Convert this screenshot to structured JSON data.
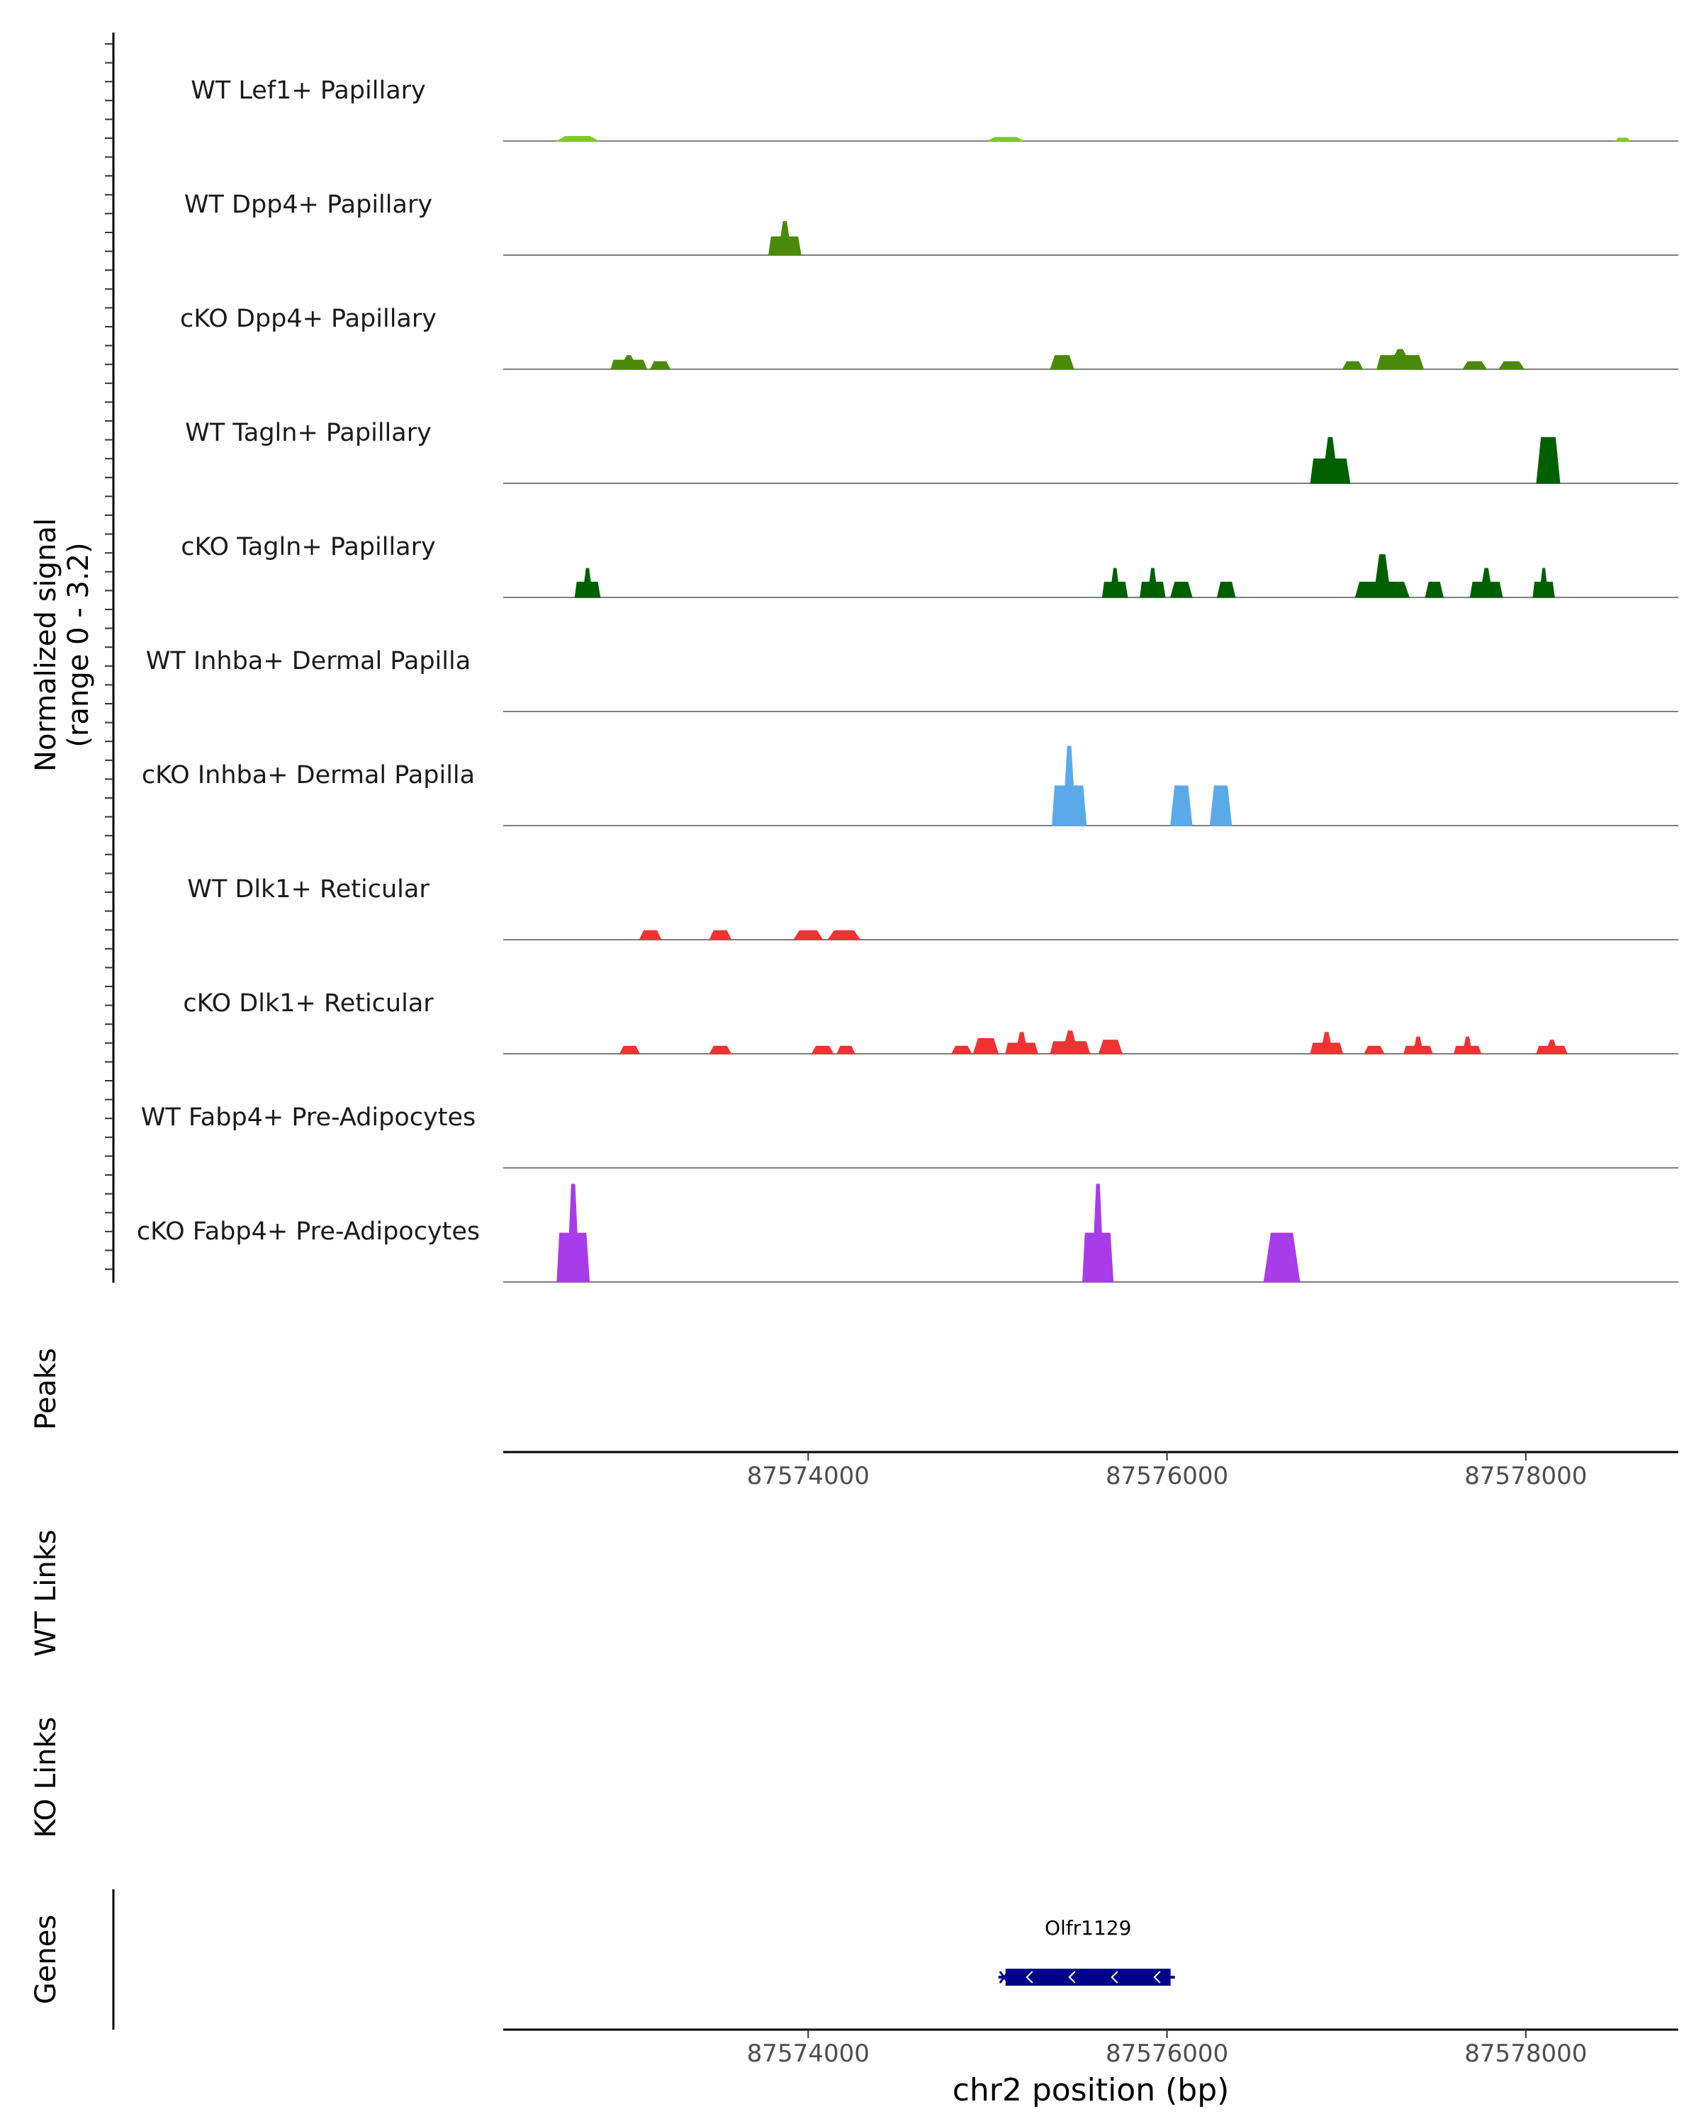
{
  "chart_data": {
    "type": "area",
    "title": "",
    "chromosome": "chr2",
    "xlim": [
      87572300,
      87578850
    ],
    "xlabel": "chr2 position (bp)",
    "x_ticks": [
      87574000,
      87576000,
      87578000
    ],
    "x_tick_labels": [
      "87574000",
      "87576000",
      "87578000"
    ],
    "ylabel": "Normalized signal",
    "ylabel_range": "(range 0 - 3.2)",
    "ylim": [
      0,
      3.2
    ],
    "series": [
      {
        "name": "WT Lef1+ Papillary",
        "color": "#7ccd1f",
        "peaks": [
          [
            87572600,
            87572830,
            0.15,
            0.0
          ],
          [
            87575000,
            87575200,
            0.12,
            0.0
          ],
          [
            87578500,
            87578580,
            0.1,
            0.0
          ]
        ]
      },
      {
        "name": "WT Dpp4+ Papillary",
        "color": "#4a8a08",
        "peaks": [
          [
            87573780,
            87573960,
            1.1,
            0.6
          ]
        ]
      },
      {
        "name": "cKO Dpp4+ Papillary",
        "color": "#4a8a08",
        "peaks": [
          [
            87572900,
            87573100,
            0.45,
            0.3
          ],
          [
            87573120,
            87573230,
            0.25,
            0.0
          ],
          [
            87575350,
            87575480,
            0.45,
            0.0
          ],
          [
            87576980,
            87577090,
            0.25,
            0.0
          ],
          [
            87577170,
            87577430,
            0.65,
            0.45
          ],
          [
            87577650,
            87577780,
            0.25,
            0.0
          ],
          [
            87577850,
            87577990,
            0.25,
            0.0
          ]
        ]
      },
      {
        "name": "WT Tagln+ Papillary",
        "color": "#006000",
        "peaks": [
          [
            87576800,
            87577020,
            1.5,
            0.8
          ],
          [
            87578060,
            87578190,
            1.5,
            0.0
          ]
        ]
      },
      {
        "name": "cKO Tagln+ Papillary",
        "color": "#006000",
        "peaks": [
          [
            87572700,
            87572840,
            0.95,
            0.5
          ],
          [
            87575640,
            87575780,
            0.95,
            0.5
          ],
          [
            87575850,
            87575990,
            0.95,
            0.5
          ],
          [
            87576020,
            87576140,
            0.5,
            0.0
          ],
          [
            87576280,
            87576380,
            0.5,
            0.0
          ],
          [
            87577050,
            87577350,
            1.4,
            0.5
          ],
          [
            87577440,
            87577540,
            0.5,
            0.0
          ],
          [
            87577690,
            87577870,
            0.95,
            0.5
          ],
          [
            87578040,
            87578160,
            0.95,
            0.5
          ]
        ]
      },
      {
        "name": "WT Inhba+ Dermal Papilla",
        "color": "#5aaaea",
        "peaks": []
      },
      {
        "name": "cKO Inhba+ Dermal Papilla",
        "color": "#5aaaea",
        "peaks": [
          [
            87575360,
            87575550,
            2.6,
            1.3
          ],
          [
            87576020,
            87576140,
            1.3,
            0.0
          ],
          [
            87576240,
            87576360,
            1.3,
            0.0
          ]
        ]
      },
      {
        "name": "WT Dlk1+ Reticular",
        "color": "#ee3333",
        "peaks": [
          [
            87573060,
            87573180,
            0.3,
            0.0
          ],
          [
            87573450,
            87573570,
            0.3,
            0.0
          ],
          [
            87573920,
            87574080,
            0.3,
            0.0
          ],
          [
            87574110,
            87574290,
            0.3,
            0.0
          ]
        ]
      },
      {
        "name": "cKO Dlk1+ Reticular",
        "color": "#ee3333",
        "peaks": [
          [
            87572950,
            87573060,
            0.25,
            0.0
          ],
          [
            87573450,
            87573570,
            0.25,
            0.0
          ],
          [
            87574020,
            87574140,
            0.25,
            0.0
          ],
          [
            87574160,
            87574260,
            0.25,
            0.0
          ],
          [
            87574800,
            87574910,
            0.25,
            0.0
          ],
          [
            87574920,
            87575060,
            0.5,
            0.0
          ],
          [
            87575100,
            87575280,
            0.7,
            0.35
          ],
          [
            87575350,
            87575570,
            0.75,
            0.4
          ],
          [
            87575620,
            87575750,
            0.45,
            0.0
          ],
          [
            87576800,
            87576980,
            0.7,
            0.35
          ],
          [
            87577100,
            87577210,
            0.25,
            0.0
          ],
          [
            87577320,
            87577480,
            0.55,
            0.25
          ],
          [
            87577600,
            87577750,
            0.55,
            0.25
          ],
          [
            87578060,
            87578230,
            0.45,
            0.25
          ]
        ]
      },
      {
        "name": "WT Fabp4+ Pre-Adipocytes",
        "color": "#a83cea",
        "peaks": []
      },
      {
        "name": "cKO Fabp4+ Pre-Adipocytes",
        "color": "#a83cea",
        "peaks": [
          [
            87572600,
            87572780,
            3.2,
            1.6
          ],
          [
            87575530,
            87575700,
            3.2,
            1.6
          ],
          [
            87576540,
            87576740,
            1.6,
            0.0
          ]
        ]
      }
    ],
    "peaks_track_label": "Peaks",
    "wt_links_label": "WT Links",
    "ko_links_label": "KO Links",
    "genes_track_label": "Genes",
    "genes": [
      {
        "name": "Olfr1129",
        "start": 87575100,
        "end": 87576020,
        "strand": "-",
        "color": "#00008b"
      }
    ]
  }
}
